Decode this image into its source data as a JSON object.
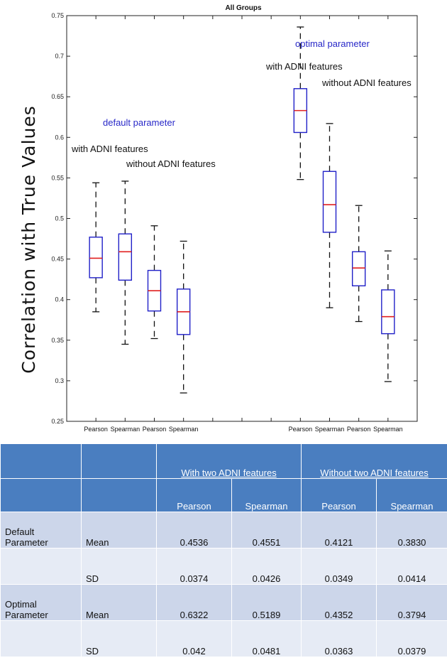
{
  "chart_data": {
    "type": "box",
    "title": "All Groups",
    "ylabel": "Correlation with True Values",
    "ylim": [
      0.25,
      0.75
    ],
    "yticks": [
      0.25,
      0.3,
      0.35,
      0.4,
      0.45,
      0.5,
      0.55,
      0.6,
      0.65,
      0.7,
      0.75
    ],
    "slots": 11,
    "boxes": [
      {
        "slot": 1,
        "label": "Pearson",
        "whisker_low": 0.385,
        "q1": 0.427,
        "median": 0.451,
        "q3": 0.477,
        "whisker_high": 0.544
      },
      {
        "slot": 2,
        "label": "Spearman",
        "whisker_low": 0.345,
        "q1": 0.424,
        "median": 0.459,
        "q3": 0.481,
        "whisker_high": 0.546
      },
      {
        "slot": 3,
        "label": "Pearson",
        "whisker_low": 0.352,
        "q1": 0.386,
        "median": 0.411,
        "q3": 0.436,
        "whisker_high": 0.491
      },
      {
        "slot": 4,
        "label": "Spearman",
        "whisker_low": 0.285,
        "q1": 0.357,
        "median": 0.385,
        "q3": 0.413,
        "whisker_high": 0.472
      },
      {
        "slot": 8,
        "label": "Pearson",
        "whisker_low": 0.548,
        "q1": 0.606,
        "median": 0.633,
        "q3": 0.66,
        "whisker_high": 0.736
      },
      {
        "slot": 9,
        "label": "Spearman",
        "whisker_low": 0.39,
        "q1": 0.483,
        "median": 0.517,
        "q3": 0.558,
        "whisker_high": 0.617
      },
      {
        "slot": 10,
        "label": "Pearson",
        "whisker_low": 0.373,
        "q1": 0.417,
        "median": 0.439,
        "q3": 0.459,
        "whisker_high": 0.516
      },
      {
        "slot": 11,
        "label": "Spearman",
        "whisker_low": 0.299,
        "q1": 0.358,
        "median": 0.379,
        "q3": 0.412,
        "whisker_high": 0.46
      }
    ],
    "annotations": [
      {
        "text": "default parameter",
        "color": "#2828c8"
      },
      {
        "text": "with ADNI features",
        "color": "#111111"
      },
      {
        "text": "without ADNI features",
        "color": "#111111"
      },
      {
        "text": "optimal parameter",
        "color": "#2828c8"
      },
      {
        "text": "with ADNI features",
        "color": "#111111"
      },
      {
        "text": "without ADNI features",
        "color": "#111111"
      }
    ],
    "box_color": "#2020c8",
    "median_color": "#e02020",
    "whisker_color": "#111111"
  },
  "table": {
    "group_headers": [
      "With two ADNI features",
      "Without two ADNI features"
    ],
    "sub_headers": [
      "Pearson",
      "Spearman",
      "Pearson",
      "Spearman"
    ],
    "rows": [
      {
        "group_line1": "Default",
        "group_line2": "Parameter",
        "stat": "Mean",
        "values": [
          "0.4536",
          "0.4551",
          "0.4121",
          "0.3830"
        ]
      },
      {
        "group_line1": "",
        "group_line2": "",
        "stat": "SD",
        "values": [
          "0.0374",
          "0.0426",
          "0.0349",
          "0.0414"
        ]
      },
      {
        "group_line1": "Optimal",
        "group_line2": "Parameter",
        "stat": "Mean",
        "values": [
          "0.6322",
          "0.5189",
          "0.4352",
          "0.3794"
        ]
      },
      {
        "group_line1": "",
        "group_line2": "",
        "stat": "SD",
        "values": [
          "0.042",
          "0.0481",
          "0.0363",
          "0.0379"
        ]
      }
    ],
    "header_color": "#4a7ec0",
    "row_colors": [
      "#ccd6ea",
      "#e6ebf5"
    ]
  }
}
